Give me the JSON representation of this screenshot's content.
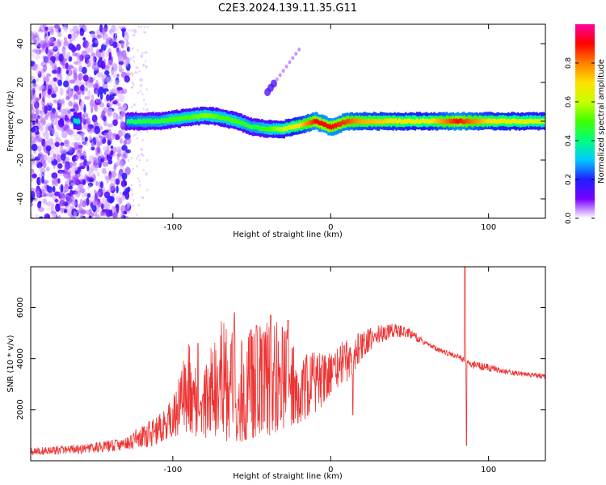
{
  "figure_title": "C2E3.2024.139.11.35.G11",
  "colorbar": {
    "label": "Normalized spectral amplitude",
    "ticks": [
      "0.0",
      "0.2",
      "0.4",
      "0.6",
      "0.8"
    ],
    "tick_values": [
      0.0,
      0.2,
      0.4,
      0.6,
      0.8
    ],
    "range": [
      0,
      1
    ],
    "colormap": [
      "#ffffff",
      "#7a00ff",
      "#2020ff",
      "#00c8ff",
      "#00ff80",
      "#40ff00",
      "#c8ff00",
      "#ffe000",
      "#ff8000",
      "#ff0000",
      "#ff00a0"
    ]
  },
  "chart_data": [
    {
      "type": "heatmap",
      "title": "C2E3.2024.139.11.35.G11",
      "xlabel": "Height of straight line (km)",
      "ylabel": "Frequency (Hz)",
      "xlim": [
        -190,
        136
      ],
      "ylim": [
        -50,
        50
      ],
      "xticks": [
        -100,
        0,
        100
      ],
      "xtick_labels": [
        "-100",
        "0",
        "100"
      ],
      "yticks": [
        -40,
        -20,
        0,
        20,
        40
      ],
      "ytick_labels": [
        "-40",
        "-20",
        "0",
        "20",
        "40"
      ],
      "grid": false,
      "ridge": {
        "x": [
          -163,
          -130,
          -120,
          -110,
          -100,
          -90,
          -80,
          -70,
          -60,
          -50,
          -40,
          -30,
          -20,
          -10,
          0,
          10,
          20,
          40,
          60,
          80,
          100,
          120,
          136
        ],
        "frequency": [
          0,
          0,
          0,
          0,
          1,
          2,
          3,
          2,
          0,
          -3,
          -4,
          -4,
          -2,
          0,
          -3,
          0,
          0,
          0,
          0,
          0,
          0,
          0,
          0
        ],
        "amplitude": [
          0.35,
          0.4,
          0.45,
          0.45,
          0.5,
          0.5,
          0.55,
          0.5,
          0.5,
          0.45,
          0.5,
          0.6,
          0.7,
          0.9,
          0.9,
          0.85,
          0.75,
          0.7,
          0.65,
          0.9,
          0.7,
          0.65,
          0.6
        ]
      },
      "noise_region_x": [
        -190,
        -128
      ],
      "isolated_feature": {
        "x": [
          -40,
          -20
        ],
        "frequency": [
          15,
          37
        ]
      }
    },
    {
      "type": "line",
      "xlabel": "Height of straight line (km)",
      "ylabel": "SNR (10 * v/v)",
      "xlim": [
        -190,
        136
      ],
      "ylim": [
        0,
        7600
      ],
      "xticks": [
        -100,
        0,
        100
      ],
      "xtick_labels": [
        "-100",
        "0",
        "100"
      ],
      "yticks": [
        2000,
        4000,
        6000
      ],
      "ytick_labels": [
        "2000",
        "4000",
        "6000"
      ],
      "grid": false,
      "color": "#ee3333",
      "envelope": {
        "x": [
          -190,
          -170,
          -150,
          -130,
          -120,
          -110,
          -100,
          -90,
          -80,
          -70,
          -60,
          -50,
          -40,
          -30,
          -20,
          -10,
          0,
          10,
          20,
          30,
          40,
          50,
          60,
          70,
          80,
          90,
          100,
          110,
          120,
          136
        ],
        "low": [
          200,
          250,
          300,
          400,
          500,
          600,
          900,
          1100,
          800,
          800,
          700,
          700,
          900,
          1200,
          1500,
          1800,
          2500,
          3000,
          4000,
          4600,
          4800,
          4800,
          4500,
          4200,
          4000,
          3600,
          3500,
          3400,
          3300,
          3200
        ],
        "high": [
          500,
          600,
          700,
          900,
          1400,
          1700,
          2500,
          4600,
          3500,
          5800,
          4800,
          5300,
          5600,
          5400,
          4300,
          4400,
          4200,
          4900,
          5100,
          5300,
          5400,
          5200,
          4700,
          4400,
          4200,
          3900,
          3800,
          3600,
          3500,
          3400
        ]
      },
      "spikes": [
        {
          "x": -84,
          "y": 4600
        },
        {
          "x": -61,
          "y": 5800
        },
        {
          "x": -47,
          "y": 5300
        },
        {
          "x": -38,
          "y": 5700
        },
        {
          "x": -27,
          "y": 5500
        },
        {
          "x": 14,
          "y": 1800
        },
        {
          "x": 85,
          "y": 7600
        },
        {
          "x": 86,
          "y": 600
        }
      ]
    }
  ]
}
